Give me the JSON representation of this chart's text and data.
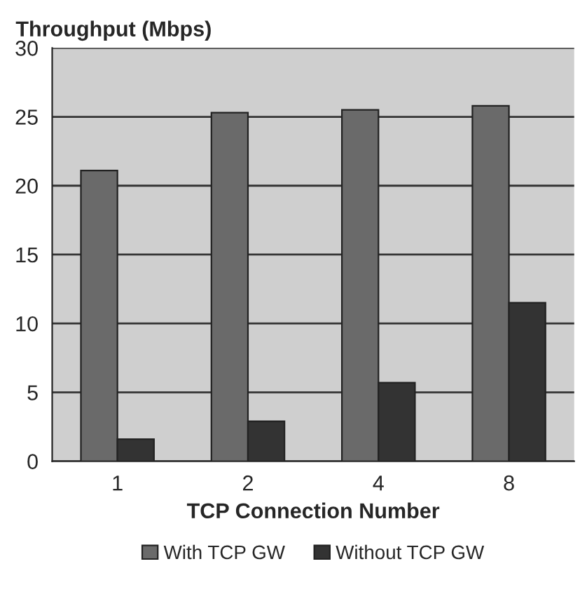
{
  "chart_data": {
    "type": "bar",
    "ylabel": "Throughput (Mbps)",
    "xlabel": "TCP Connection Number",
    "categories": [
      "1",
      "2",
      "4",
      "8"
    ],
    "series": [
      {
        "name": "With TCP GW",
        "color": "#6a6a6a",
        "values": [
          21.1,
          25.3,
          25.5,
          25.8
        ]
      },
      {
        "name": "Without TCP GW",
        "color": "#333333",
        "values": [
          1.6,
          2.9,
          5.7,
          11.5
        ]
      }
    ],
    "ylim": [
      0,
      30
    ],
    "yticks": [
      0,
      5,
      10,
      15,
      20,
      25,
      30
    ],
    "grid": "y",
    "legend": "bottom"
  }
}
